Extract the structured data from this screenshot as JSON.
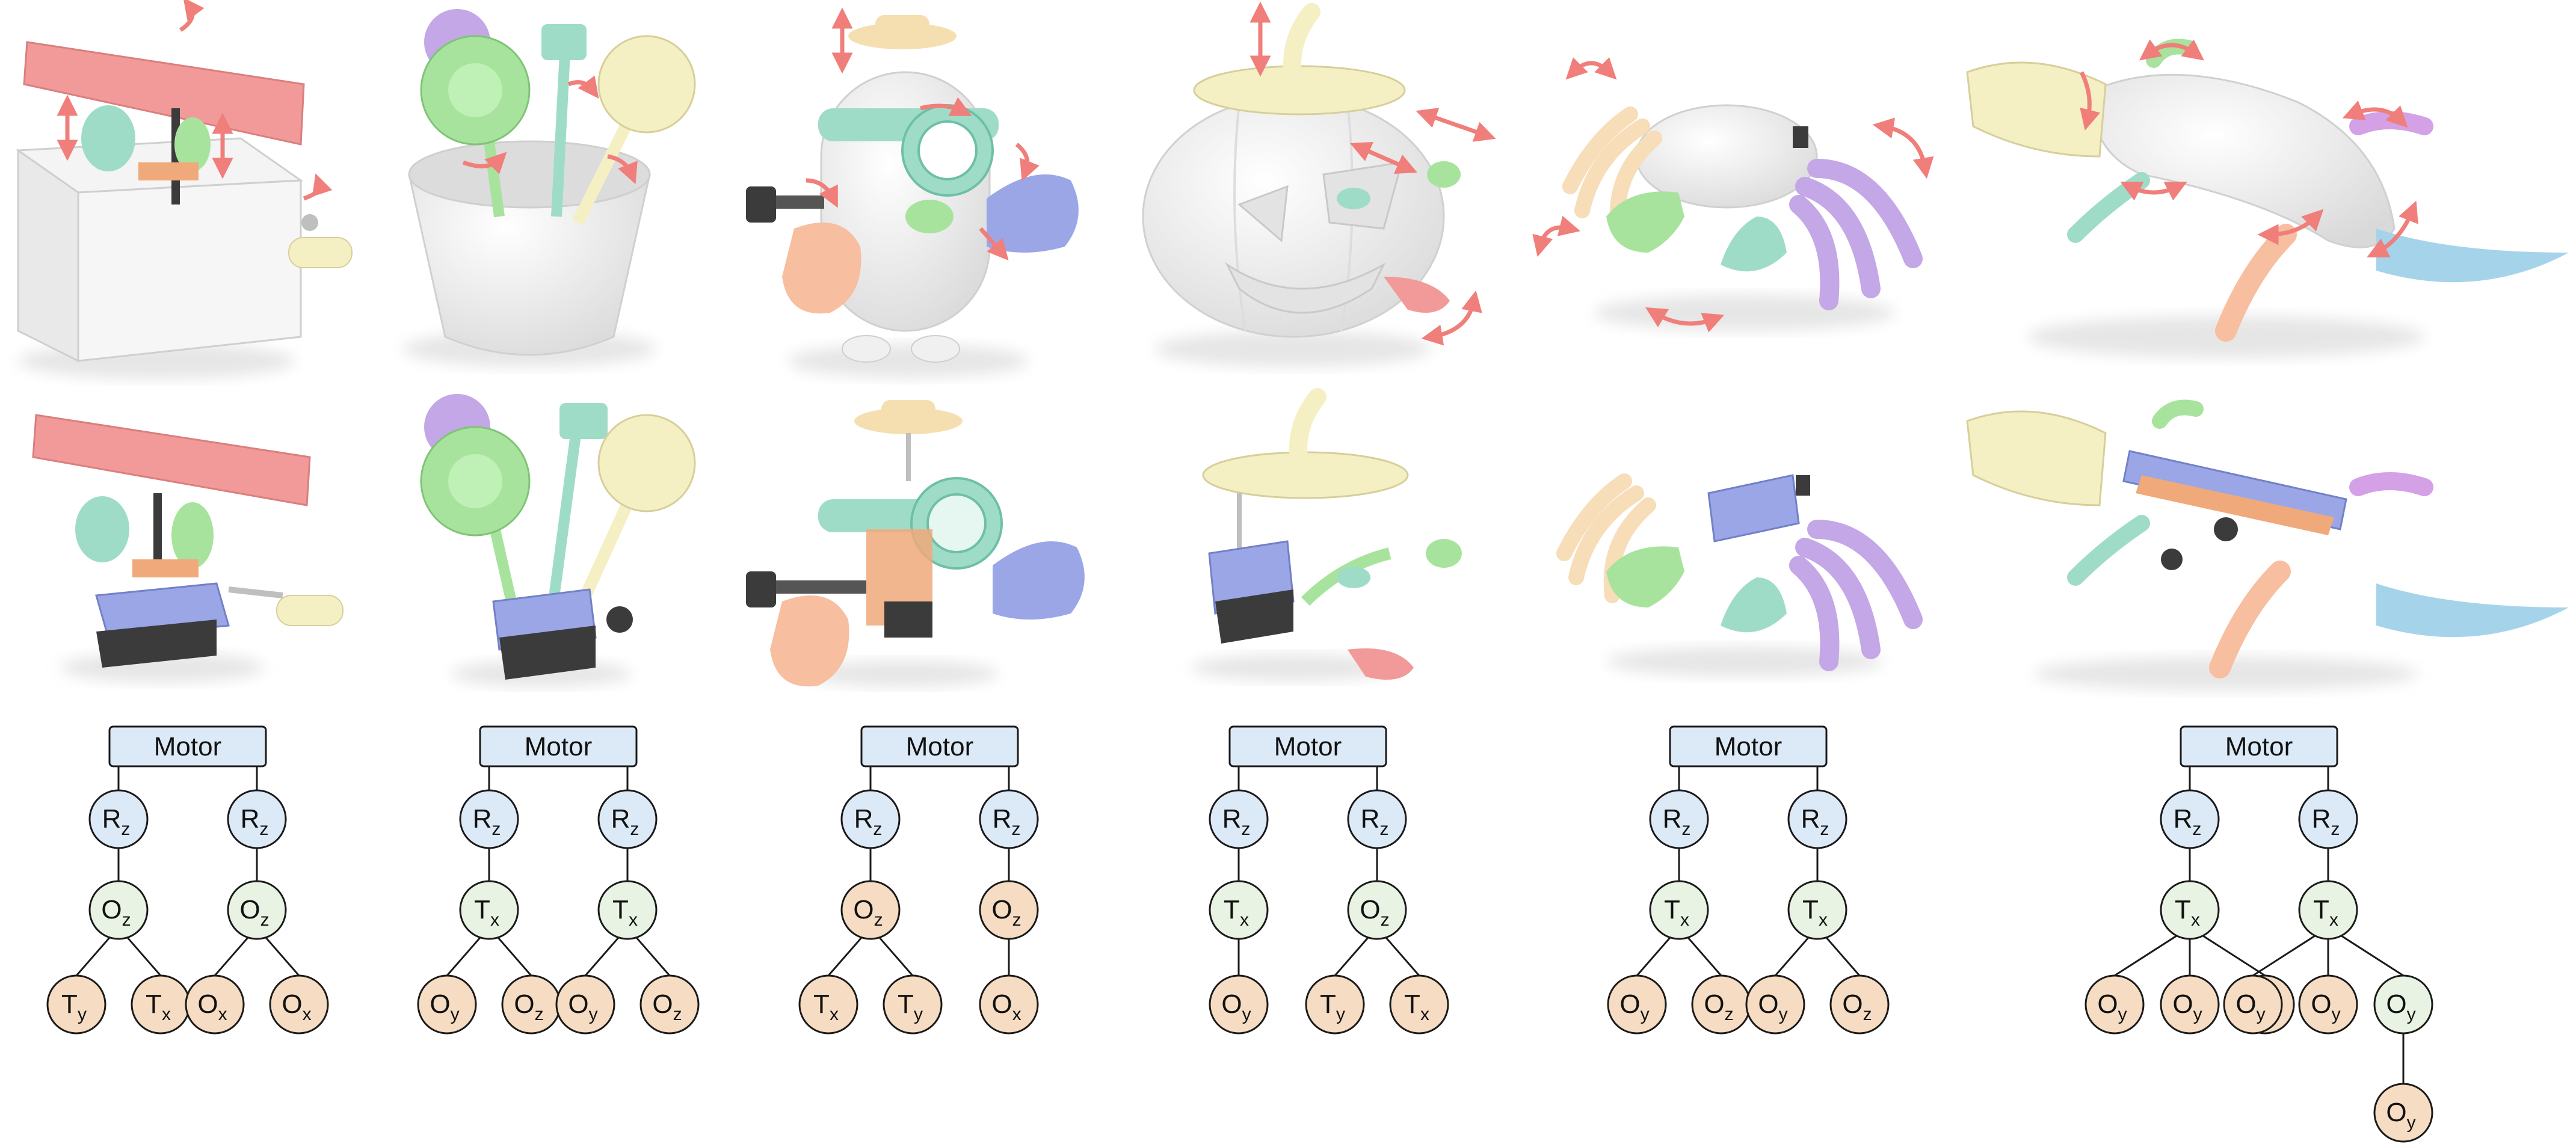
{
  "colors": {
    "motor_fill": "#dce9f6",
    "rotation_fill": "#dce9f6",
    "transmission_fill": "#e8f3e3",
    "output_fill": "#f5dcc2",
    "node_stroke": "#1a1a1a",
    "arrow": "#f07e7a",
    "pink": "#f19a99",
    "mint": "#9fdcc8",
    "green": "#a8e39e",
    "cream": "#f5efc4",
    "lavender": "#c4a7e6",
    "peach": "#f7bea0",
    "blue": "#a5d4ea",
    "periwinkle": "#9aa6e6",
    "orange": "#f0a97a",
    "dark": "#3b3b3b",
    "white_body": "#f0f0f0"
  },
  "toys": [
    {
      "object": "jack-in-the-box",
      "tree": {
        "label": "Motor",
        "children": [
          {
            "sym": "R",
            "sub": "z",
            "kind": "rotation",
            "children": [
              {
                "sym": "O",
                "sub": "z",
                "kind": "transmission",
                "children": [
                  {
                    "sym": "T",
                    "sub": "y",
                    "kind": "output"
                  },
                  {
                    "sym": "T",
                    "sub": "x",
                    "kind": "output"
                  }
                ]
              }
            ]
          },
          {
            "sym": "R",
            "sub": "z",
            "kind": "rotation",
            "children": [
              {
                "sym": "O",
                "sub": "z",
                "kind": "transmission",
                "children": [
                  {
                    "sym": "O",
                    "sub": "x",
                    "kind": "output"
                  },
                  {
                    "sym": "O",
                    "sub": "x",
                    "kind": "output"
                  }
                ]
              }
            ]
          }
        ]
      }
    },
    {
      "object": "flower-pot",
      "tree": {
        "label": "Motor",
        "children": [
          {
            "sym": "R",
            "sub": "z",
            "kind": "rotation",
            "children": [
              {
                "sym": "T",
                "sub": "x",
                "kind": "transmission",
                "children": [
                  {
                    "sym": "O",
                    "sub": "y",
                    "kind": "output"
                  },
                  {
                    "sym": "O",
                    "sub": "z",
                    "kind": "output"
                  }
                ]
              }
            ]
          },
          {
            "sym": "R",
            "sub": "z",
            "kind": "rotation",
            "children": [
              {
                "sym": "T",
                "sub": "x",
                "kind": "transmission",
                "children": [
                  {
                    "sym": "O",
                    "sub": "y",
                    "kind": "output"
                  },
                  {
                    "sym": "O",
                    "sub": "z",
                    "kind": "output"
                  }
                ]
              }
            ]
          }
        ]
      }
    },
    {
      "object": "minion",
      "tree": {
        "label": "Motor",
        "children": [
          {
            "sym": "R",
            "sub": "z",
            "kind": "rotation",
            "children": [
              {
                "sym": "O",
                "sub": "z",
                "kind": "output",
                "children": [
                  {
                    "sym": "T",
                    "sub": "x",
                    "kind": "output"
                  },
                  {
                    "sym": "T",
                    "sub": "y",
                    "kind": "output"
                  }
                ]
              }
            ]
          },
          {
            "sym": "R",
            "sub": "z",
            "kind": "rotation",
            "children": [
              {
                "sym": "O",
                "sub": "z",
                "kind": "output",
                "children": [
                  {
                    "sym": "O",
                    "sub": "x",
                    "kind": "output"
                  }
                ]
              }
            ]
          }
        ]
      }
    },
    {
      "object": "pumpkin",
      "tree": {
        "label": "Motor",
        "children": [
          {
            "sym": "R",
            "sub": "z",
            "kind": "rotation",
            "children": [
              {
                "sym": "T",
                "sub": "x",
                "kind": "transmission",
                "children": [
                  {
                    "sym": "O",
                    "sub": "y",
                    "kind": "output"
                  }
                ]
              }
            ]
          },
          {
            "sym": "R",
            "sub": "z",
            "kind": "rotation",
            "children": [
              {
                "sym": "O",
                "sub": "z",
                "kind": "transmission",
                "children": [
                  {
                    "sym": "T",
                    "sub": "y",
                    "kind": "output"
                  },
                  {
                    "sym": "T",
                    "sub": "x",
                    "kind": "output"
                  }
                ]
              }
            ]
          }
        ]
      }
    },
    {
      "object": "crab",
      "tree": {
        "label": "Motor",
        "children": [
          {
            "sym": "R",
            "sub": "z",
            "kind": "rotation",
            "children": [
              {
                "sym": "T",
                "sub": "x",
                "kind": "transmission",
                "children": [
                  {
                    "sym": "O",
                    "sub": "y",
                    "kind": "output"
                  },
                  {
                    "sym": "O",
                    "sub": "z",
                    "kind": "output"
                  }
                ]
              }
            ]
          },
          {
            "sym": "R",
            "sub": "z",
            "kind": "rotation",
            "children": [
              {
                "sym": "T",
                "sub": "x",
                "kind": "transmission",
                "children": [
                  {
                    "sym": "O",
                    "sub": "y",
                    "kind": "output"
                  },
                  {
                    "sym": "O",
                    "sub": "z",
                    "kind": "output"
                  }
                ]
              }
            ]
          }
        ]
      }
    },
    {
      "object": "gecko",
      "tree": {
        "label": "Motor",
        "children": [
          {
            "sym": "R",
            "sub": "z",
            "kind": "rotation",
            "children": [
              {
                "sym": "T",
                "sub": "x",
                "kind": "transmission",
                "children": [
                  {
                    "sym": "O",
                    "sub": "y",
                    "kind": "output"
                  },
                  {
                    "sym": "O",
                    "sub": "y",
                    "kind": "output"
                  },
                  {
                    "sym": "O",
                    "sub": "x",
                    "kind": "output"
                  }
                ]
              }
            ]
          },
          {
            "sym": "R",
            "sub": "z",
            "kind": "rotation",
            "children": [
              {
                "sym": "T",
                "sub": "x",
                "kind": "transmission",
                "children": [
                  {
                    "sym": "O",
                    "sub": "y",
                    "kind": "output"
                  },
                  {
                    "sym": "O",
                    "sub": "y",
                    "kind": "output"
                  },
                  {
                    "sym": "O",
                    "sub": "y",
                    "kind": "transmission",
                    "children": [
                      {
                        "sym": "O",
                        "sub": "y",
                        "kind": "output"
                      }
                    ]
                  }
                ]
              }
            ]
          }
        ]
      }
    }
  ]
}
